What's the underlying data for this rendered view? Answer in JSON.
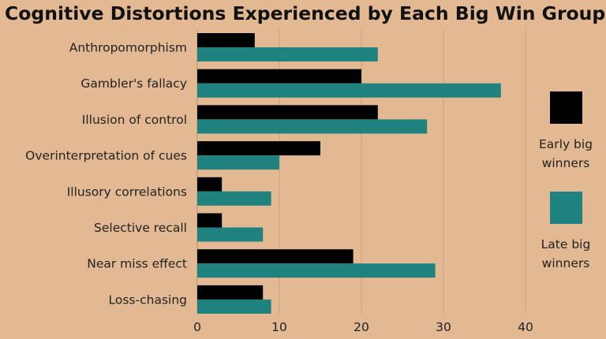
{
  "chart_data": {
    "type": "bar",
    "orientation": "horizontal",
    "title": "Cognitive Distortions Experienced by Each Big Win Group",
    "categories": [
      "Anthropomorphism",
      "Gambler's fallacy",
      "Illusion of control",
      "Overinterpretation of cues",
      "Illusory correlations",
      "Selective recall",
      "Near miss effect",
      "Loss-chasing"
    ],
    "series": [
      {
        "name": "Early big winners",
        "legend_lines": [
          "Early big",
          "winners"
        ],
        "color": "#000000",
        "values": [
          7,
          20,
          22,
          15,
          3,
          3,
          19,
          8
        ]
      },
      {
        "name": "Late big winners",
        "legend_lines": [
          "Late big",
          "winners"
        ],
        "color": "#1f827f",
        "values": [
          22,
          37,
          28,
          10,
          9,
          8,
          29,
          9
        ]
      }
    ],
    "xlim": [
      0,
      47
    ],
    "xticks": [
      0,
      10,
      20,
      30,
      40
    ],
    "xlabel": "",
    "ylabel": "",
    "grid": true,
    "legend_position": "right"
  }
}
